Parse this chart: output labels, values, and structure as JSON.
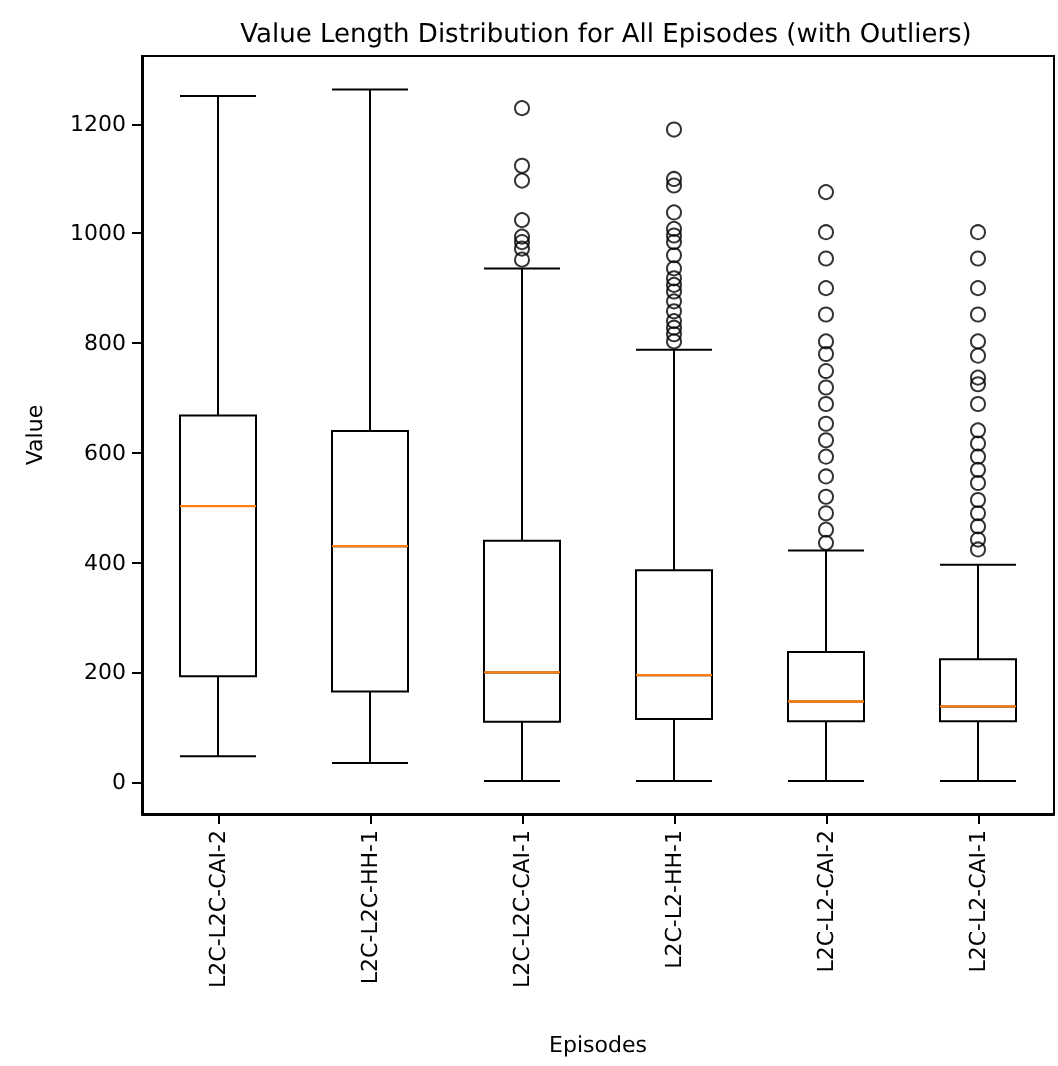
{
  "chart_data": {
    "type": "box",
    "title": "Value Length Distribution for All Episodes (with Outliers)",
    "xlabel": "Episodes",
    "ylabel": "Value",
    "categories": [
      "L2C-L2C-CAI-2",
      "L2C-L2C-HH-1",
      "L2C-L2C-CAI-1",
      "L2C-L2-HH-1",
      "L2C-L2-CAI-2",
      "L2C-L2-CAI-1"
    ],
    "boxes": [
      {
        "low": 47,
        "q1": 193,
        "median": 503,
        "q3": 668,
        "high": 1250
      },
      {
        "low": 35,
        "q1": 165,
        "median": 430,
        "q3": 640,
        "high": 1262
      },
      {
        "low": 2,
        "q1": 110,
        "median": 200,
        "q3": 440,
        "high": 936,
        "outliers": [
          1228,
          1123,
          1096,
          1024,
          994,
          984,
          972,
          952
        ]
      },
      {
        "low": 2,
        "q1": 115,
        "median": 195,
        "q3": 386,
        "high": 788,
        "outliers": [
          1189,
          1099,
          1087,
          1038,
          1008,
          996,
          984,
          960,
          936,
          918,
          906,
          894,
          876,
          858,
          840,
          828,
          816,
          803
        ]
      },
      {
        "low": 2,
        "q1": 111,
        "median": 147,
        "q3": 237,
        "high": 422,
        "outliers": [
          1075,
          1002,
          954,
          900,
          852,
          803,
          780,
          749,
          719,
          689,
          653,
          623,
          593,
          557,
          520,
          490,
          460,
          436
        ]
      },
      {
        "low": 2,
        "q1": 111,
        "median": 138,
        "q3": 224,
        "high": 396,
        "outliers": [
          1002,
          954,
          900,
          852,
          803,
          777,
          737,
          725,
          689,
          641,
          617,
          593,
          569,
          545,
          514,
          490,
          466,
          442,
          424
        ]
      }
    ],
    "color": "#000000",
    "marker": "circle",
    "ylim": [
      -58,
      1323
    ],
    "yticks": [
      0,
      200,
      400,
      600,
      800,
      1000,
      1200
    ]
  }
}
